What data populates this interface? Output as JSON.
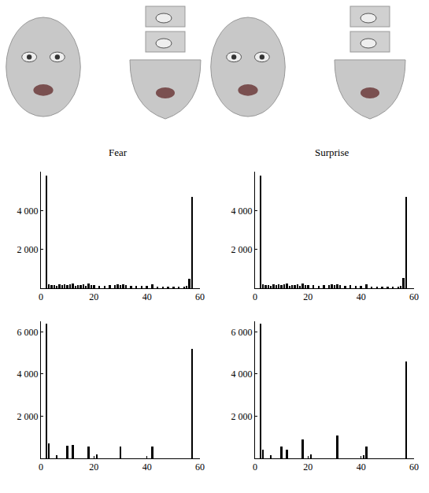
{
  "chart_data": [
    {
      "type": "bar",
      "title": "Fear",
      "color": "#000000",
      "grid": false,
      "x": [
        2,
        3,
        4,
        5,
        6,
        7,
        8,
        9,
        10,
        11,
        12,
        13,
        14,
        15,
        16,
        17,
        18,
        19,
        20,
        22,
        24,
        26,
        28,
        29,
        30,
        31,
        32,
        34,
        36,
        38,
        40,
        42,
        44,
        46,
        48,
        50,
        52,
        54,
        55,
        56,
        57
      ],
      "values": [
        5800,
        200,
        150,
        180,
        120,
        200,
        160,
        220,
        150,
        200,
        250,
        130,
        180,
        160,
        200,
        120,
        250,
        150,
        180,
        140,
        120,
        160,
        150,
        200,
        180,
        220,
        150,
        120,
        140,
        110,
        130,
        200,
        90,
        80,
        100,
        70,
        90,
        80,
        120,
        500,
        4700
      ],
      "xlim": [
        0,
        60
      ],
      "xticks": [
        0,
        20,
        40,
        60
      ],
      "ylim": [
        0,
        6000
      ],
      "yticks": [
        {
          "value": 2000,
          "label": "2 000"
        },
        {
          "value": 4000,
          "label": "4 000"
        }
      ]
    },
    {
      "type": "bar",
      "title": "Surprise",
      "color": "#000000",
      "grid": false,
      "x": [
        2,
        3,
        4,
        5,
        6,
        7,
        8,
        9,
        10,
        11,
        12,
        13,
        14,
        15,
        16,
        17,
        18,
        19,
        20,
        22,
        24,
        26,
        28,
        29,
        30,
        31,
        32,
        34,
        36,
        38,
        40,
        42,
        44,
        46,
        48,
        50,
        52,
        54,
        55,
        56,
        57
      ],
      "values": [
        5800,
        220,
        160,
        170,
        130,
        190,
        170,
        210,
        160,
        190,
        240,
        140,
        170,
        150,
        210,
        130,
        240,
        160,
        170,
        150,
        130,
        150,
        160,
        190,
        170,
        210,
        160,
        130,
        150,
        120,
        120,
        210,
        100,
        90,
        90,
        80,
        80,
        90,
        130,
        520,
        4700
      ],
      "xlim": [
        0,
        60
      ],
      "xticks": [
        0,
        20,
        40,
        60
      ],
      "ylim": [
        0,
        6000
      ],
      "yticks": [
        {
          "value": 2000,
          "label": "2 000"
        },
        {
          "value": 4000,
          "label": "4 000"
        }
      ]
    },
    {
      "type": "bar",
      "color": "#000000",
      "grid": false,
      "x": [
        2,
        3,
        6,
        10,
        12,
        18,
        21,
        30,
        42,
        57
      ],
      "values": [
        6400,
        700,
        150,
        600,
        650,
        550,
        200,
        550,
        550,
        5200
      ],
      "xlim": [
        0,
        60
      ],
      "xticks": [
        0,
        20,
        40,
        60
      ],
      "ylim": [
        0,
        6500
      ],
      "yticks": [
        {
          "value": 2000,
          "label": "2 000"
        },
        {
          "value": 4000,
          "label": "4 000"
        },
        {
          "value": 6000,
          "label": "6 000"
        }
      ]
    },
    {
      "type": "bar",
      "color": "#000000",
      "grid": false,
      "x": [
        2,
        3,
        6,
        10,
        12,
        18,
        21,
        31,
        41,
        42,
        57
      ],
      "values": [
        6400,
        400,
        150,
        550,
        400,
        900,
        200,
        1100,
        150,
        550,
        4600
      ],
      "xlim": [
        0,
        60
      ],
      "xticks": [
        0,
        20,
        40,
        60
      ],
      "ylim": [
        0,
        6500
      ],
      "yticks": [
        {
          "value": 2000,
          "label": "2 000"
        },
        {
          "value": 4000,
          "label": "4 000"
        },
        {
          "value": 6000,
          "label": "6 000"
        }
      ]
    }
  ]
}
